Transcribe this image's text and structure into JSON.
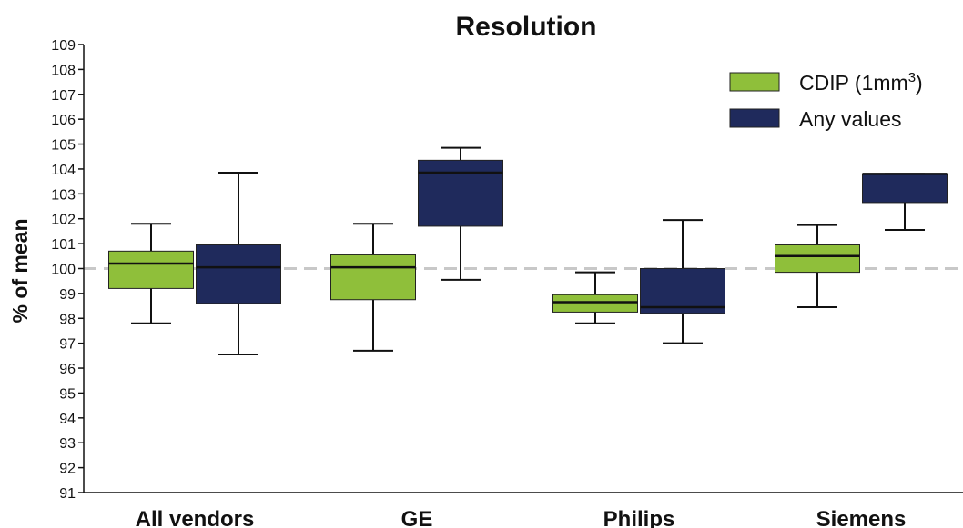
{
  "chart_data": {
    "type": "boxplot",
    "title": "Resolution",
    "xlabel": "",
    "ylabel": "% of mean",
    "ylim": [
      91,
      109
    ],
    "yticks": [
      91,
      92,
      93,
      94,
      95,
      96,
      97,
      98,
      99,
      100,
      101,
      102,
      103,
      104,
      105,
      106,
      107,
      108,
      109
    ],
    "reference_line": 100,
    "categories": [
      "All vendors",
      "GE",
      "Philips",
      "Siemens"
    ],
    "legend_position": "top-right",
    "grid": false,
    "series": [
      {
        "name": "CDIP (1mm",
        "name_sup": "3",
        "name_suffix": ")",
        "color": "#8fbf3a",
        "boxes": [
          {
            "min": 97.8,
            "q1": 99.2,
            "median": 100.2,
            "q3": 100.7,
            "max": 101.8
          },
          {
            "min": 96.7,
            "q1": 98.75,
            "median": 100.05,
            "q3": 100.55,
            "max": 101.8
          },
          {
            "min": 97.8,
            "q1": 98.25,
            "median": 98.65,
            "q3": 98.95,
            "max": 99.85
          },
          {
            "min": 98.45,
            "q1": 99.85,
            "median": 100.5,
            "q3": 100.95,
            "max": 101.75
          }
        ]
      },
      {
        "name": "Any values",
        "color": "#1f2a5c",
        "boxes": [
          {
            "min": 96.55,
            "q1": 98.6,
            "median": 100.05,
            "q3": 100.95,
            "max": 103.85
          },
          {
            "min": 99.55,
            "q1": 101.7,
            "median": 103.85,
            "q3": 104.35,
            "max": 104.85
          },
          {
            "min": 97.0,
            "q1": 98.2,
            "median": 98.45,
            "q3": 100.0,
            "max": 101.95
          },
          {
            "min": 101.55,
            "q1": 102.65,
            "median": 103.8,
            "q3": 103.8,
            "max": 103.8
          }
        ]
      }
    ]
  }
}
